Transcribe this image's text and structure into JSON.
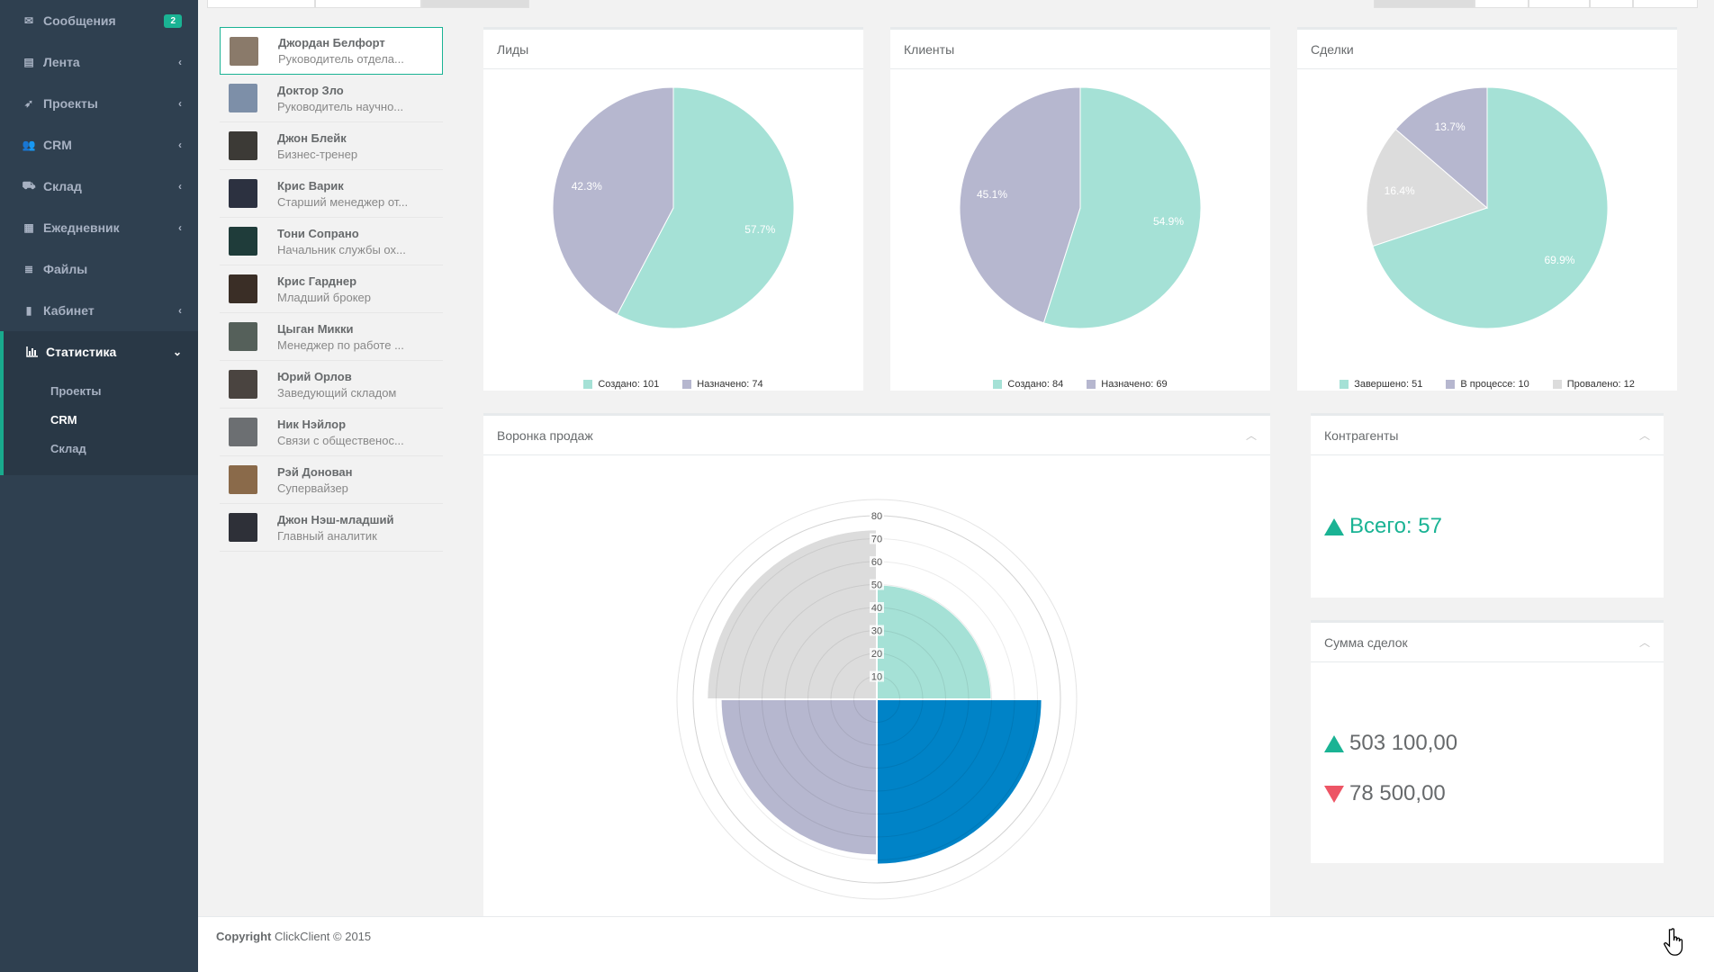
{
  "sidebar": {
    "items": [
      {
        "icon": "envelope-icon",
        "label": "Сообщения",
        "badge": "2"
      },
      {
        "icon": "newspaper-icon",
        "label": "Лента"
      },
      {
        "icon": "rocket-icon",
        "label": "Проекты"
      },
      {
        "icon": "users-icon",
        "label": "CRM"
      },
      {
        "icon": "cart-icon",
        "label": "Склад"
      },
      {
        "icon": "calendar-icon",
        "label": "Ежедневник"
      },
      {
        "icon": "database-icon",
        "label": "Файлы"
      },
      {
        "icon": "book-icon",
        "label": "Кабинет"
      }
    ],
    "active": {
      "icon": "bar-chart-icon",
      "label": "Статистика",
      "sub": [
        "Проекты",
        "CRM",
        "Склад"
      ],
      "current_sub": "CRM"
    }
  },
  "people": [
    {
      "name": "Джордан Белфорт",
      "role": "Руководитель отдела...",
      "avatar_color": "#8a7a6a"
    },
    {
      "name": "Доктор Зло",
      "role": "Руководитель научно...",
      "avatar_color": "#7d8fa8"
    },
    {
      "name": "Джон Блейк",
      "role": "Бизнес-тренер",
      "avatar_color": "#3c3a36"
    },
    {
      "name": "Крис Варик",
      "role": "Старший менеджер от...",
      "avatar_color": "#2c3140"
    },
    {
      "name": "Тони Сопрано",
      "role": "Начальник службы ох...",
      "avatar_color": "#1f3c3a"
    },
    {
      "name": "Крис Гарднер",
      "role": "Младший брокер",
      "avatar_color": "#3a2e26"
    },
    {
      "name": "Цыган Микки",
      "role": "Менеджер по работе ...",
      "avatar_color": "#55605a"
    },
    {
      "name": "Юрий Орлов",
      "role": "Заведующий складом",
      "avatar_color": "#4a4440"
    },
    {
      "name": "Ник Нэйлор",
      "role": "Связи с общественос...",
      "avatar_color": "#6c6f72"
    },
    {
      "name": "Рэй Донован",
      "role": "Супервайзер",
      "avatar_color": "#8a6a4a"
    },
    {
      "name": "Джон Нэш-младший",
      "role": "Главный аналитик",
      "avatar_color": "#2e3038"
    }
  ],
  "panels": {
    "leads": {
      "title": "Лиды"
    },
    "clients": {
      "title": "Клиенты"
    },
    "deals": {
      "title": "Сделки"
    },
    "funnel": {
      "title": "Воронка продаж"
    },
    "contractors": {
      "title": "Контрагенты",
      "total": "Всего: 57"
    },
    "deal_sum": {
      "title": "Сумма сделок",
      "up": "503 100,00",
      "down": "78 500,00"
    }
  },
  "colors": {
    "teal": "#a5e1d6",
    "lavender": "#b6b7cf",
    "gray": "#dcdcdc",
    "blue": "#0083c7",
    "accent": "#1ab394",
    "red": "#ed5565"
  },
  "chart_data": [
    {
      "type": "pie",
      "title": "Лиды",
      "slices": [
        {
          "label": "Создано: 101",
          "value": 101,
          "pct": "57.7%",
          "color": "#a5e1d6"
        },
        {
          "label": "Назначено: 74",
          "value": 74,
          "pct": "42.3%",
          "color": "#b6b7cf"
        }
      ]
    },
    {
      "type": "pie",
      "title": "Клиенты",
      "slices": [
        {
          "label": "Создано: 84",
          "value": 84,
          "pct": "54.9%",
          "color": "#a5e1d6"
        },
        {
          "label": "Назначено: 69",
          "value": 69,
          "pct": "45.1%",
          "color": "#b6b7cf"
        }
      ]
    },
    {
      "type": "pie",
      "title": "Сделки",
      "slices": [
        {
          "label": "Завершено: 51",
          "value": 51,
          "pct": "69.9%",
          "color": "#a5e1d6"
        },
        {
          "label": "Провалено: 12",
          "value": 12,
          "pct": "16.4%",
          "color": "#dcdcdc"
        },
        {
          "label": "В процессе: 10",
          "value": 10,
          "pct": "13.7%",
          "color": "#b6b7cf"
        }
      ],
      "legend_order": [
        "Завершено: 51",
        "В процессе: 10",
        "Провалено: 12"
      ]
    },
    {
      "type": "polar-area",
      "title": "Воронка продаж",
      "ticks": [
        10,
        20,
        30,
        40,
        50,
        60,
        70,
        80
      ],
      "max": 80,
      "values": [
        50,
        72,
        68,
        74
      ],
      "colors": [
        "#a5e1d6",
        "#0083c7",
        "#b6b7cf",
        "#dcdcdc"
      ]
    }
  ],
  "footer": {
    "brand": "Copyright",
    "text": "ClickClient © 2015"
  }
}
